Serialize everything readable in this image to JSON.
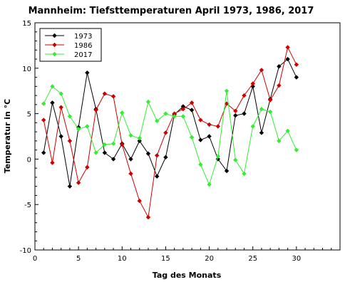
{
  "chart_data": {
    "type": "line",
    "title": "Mannheim: Tiefsttemperaturen April 1973, 1986, 2017",
    "xlabel": "Tag des Monats",
    "ylabel": "Temperatur in °C",
    "xlim": [
      0,
      35
    ],
    "ylim": [
      -10,
      15
    ],
    "xticks": [
      0,
      5,
      10,
      15,
      20,
      25,
      30
    ],
    "yticks": [
      -10,
      -5,
      0,
      5,
      10,
      15
    ],
    "grid": false,
    "legend_position": "top-left",
    "x": [
      1,
      2,
      3,
      4,
      5,
      6,
      7,
      8,
      9,
      10,
      11,
      12,
      13,
      14,
      15,
      16,
      17,
      18,
      19,
      20,
      21,
      22,
      23,
      24,
      25,
      26,
      27,
      28,
      29,
      30
    ],
    "series": [
      {
        "name": "1973",
        "color": "#000000",
        "values": [
          0.7,
          6.2,
          2.5,
          -3.0,
          3.5,
          9.5,
          5.5,
          0.7,
          0.0,
          1.7,
          0.0,
          2.0,
          0.6,
          -1.9,
          0.2,
          4.9,
          5.8,
          5.4,
          2.1,
          2.5,
          0.0,
          -1.3,
          4.8,
          5.0,
          8.0,
          2.9,
          6.6,
          10.2,
          11.0,
          9.0
        ]
      },
      {
        "name": "1986",
        "color": "#cc0000",
        "values": [
          4.3,
          -0.4,
          5.7,
          2.0,
          -2.6,
          -0.9,
          5.4,
          7.2,
          6.9,
          1.6,
          -1.6,
          -4.6,
          -6.4,
          0.4,
          2.9,
          5.0,
          5.5,
          6.2,
          4.3,
          3.8,
          3.6,
          6.1,
          5.3,
          7.0,
          8.3,
          9.8,
          6.5,
          8.1,
          12.3,
          10.4
        ]
      },
      {
        "name": "2017",
        "color": "#33ee33",
        "values": [
          6.1,
          8.0,
          7.2,
          4.7,
          3.3,
          3.6,
          0.7,
          1.6,
          1.7,
          5.1,
          2.6,
          2.3,
          6.3,
          4.2,
          5.0,
          4.7,
          4.7,
          2.4,
          -0.6,
          -2.8,
          0.3,
          7.5,
          -0.1,
          -1.6,
          3.6,
          5.5,
          5.2,
          2.0,
          3.1,
          1.0
        ]
      }
    ]
  }
}
